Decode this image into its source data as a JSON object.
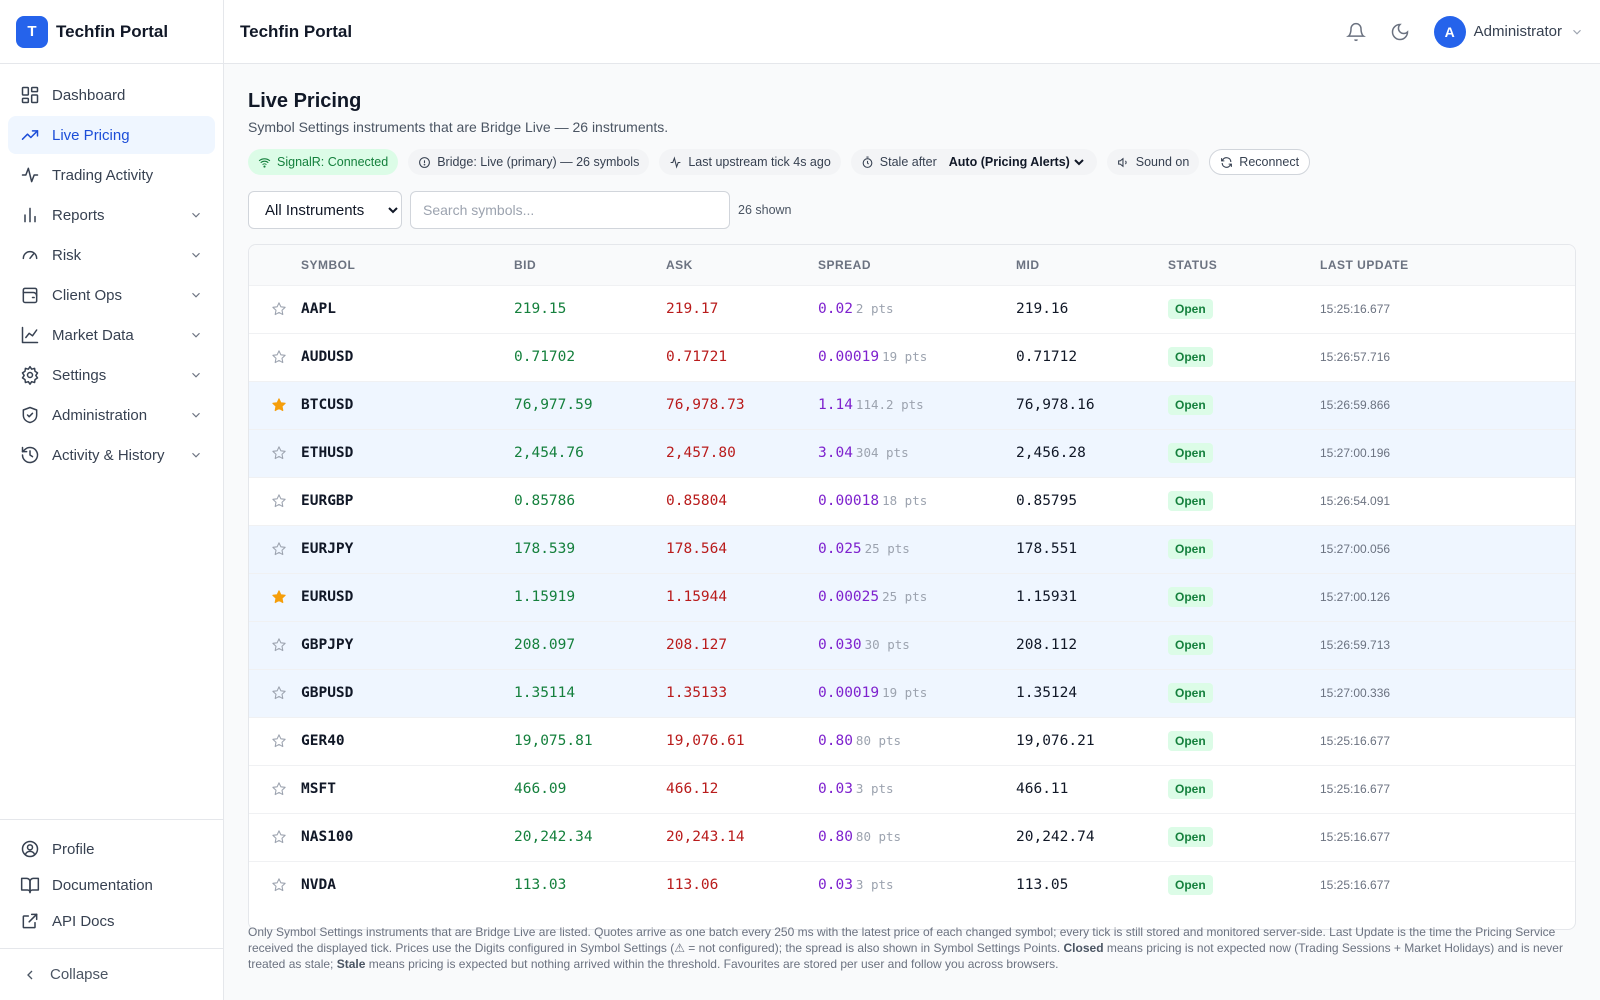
{
  "brand": {
    "logo_letter": "T",
    "name": "Techfin Portal"
  },
  "header": {
    "title": "Techfin Portal",
    "user_initial": "A",
    "user_name": "Administrator"
  },
  "sidebar": {
    "items": [
      {
        "label": "Dashboard",
        "icon": "dashboard-icon",
        "active": false,
        "expandable": false
      },
      {
        "label": "Live Pricing",
        "icon": "trending-up-icon",
        "active": true,
        "expandable": false
      },
      {
        "label": "Trading Activity",
        "icon": "activity-icon",
        "active": false,
        "expandable": false
      },
      {
        "label": "Reports",
        "icon": "bar-chart-icon",
        "active": false,
        "expandable": true
      },
      {
        "label": "Risk",
        "icon": "gauge-icon",
        "active": false,
        "expandable": true
      },
      {
        "label": "Client Ops",
        "icon": "wallet-icon",
        "active": false,
        "expandable": true
      },
      {
        "label": "Market Data",
        "icon": "line-chart-icon",
        "active": false,
        "expandable": true
      },
      {
        "label": "Settings",
        "icon": "gear-icon",
        "active": false,
        "expandable": true
      },
      {
        "label": "Administration",
        "icon": "shield-icon",
        "active": false,
        "expandable": true
      },
      {
        "label": "Activity & History",
        "icon": "history-icon",
        "active": false,
        "expandable": true
      }
    ],
    "bottom_items": [
      {
        "label": "Profile",
        "icon": "user-circle-icon"
      },
      {
        "label": "Documentation",
        "icon": "book-icon"
      },
      {
        "label": "API Docs",
        "icon": "external-link-icon"
      }
    ],
    "collapse_label": "Collapse"
  },
  "main": {
    "title": "Live Pricing",
    "subtitle": "Symbol Settings instruments that are Bridge Live — 26 instruments.",
    "chips": {
      "signalr": "SignalR: Connected",
      "bridge": "Bridge: Live (primary) — 26 symbols",
      "last_tick": "Last upstream tick 4s ago",
      "stale_label": "Stale after",
      "stale_value": "Auto (Pricing Alerts)",
      "sound": "Sound on",
      "reconnect": "Reconnect"
    },
    "filter": {
      "instrument_value": "All Instruments",
      "search_placeholder": "Search symbols...",
      "shown": "26 shown"
    },
    "columns": [
      "SYMBOL",
      "BID",
      "ASK",
      "SPREAD",
      "MID",
      "STATUS",
      "LAST UPDATE"
    ],
    "rows": [
      {
        "fav": false,
        "hl": false,
        "symbol": "AAPL",
        "bid": "219.15",
        "ask": "219.17",
        "spread": "0.02",
        "pts": "2 pts",
        "mid": "219.16",
        "status": "Open",
        "updated": "15:25:16.677"
      },
      {
        "fav": false,
        "hl": false,
        "symbol": "AUDUSD",
        "bid": "0.71702",
        "ask": "0.71721",
        "spread": "0.00019",
        "pts": "19 pts",
        "mid": "0.71712",
        "status": "Open",
        "updated": "15:26:57.716"
      },
      {
        "fav": true,
        "hl": true,
        "symbol": "BTCUSD",
        "bid": "76,977.59",
        "ask": "76,978.73",
        "spread": "1.14",
        "pts": "114.2 pts",
        "mid": "76,978.16",
        "status": "Open",
        "updated": "15:26:59.866"
      },
      {
        "fav": false,
        "hl": true,
        "symbol": "ETHUSD",
        "bid": "2,454.76",
        "ask": "2,457.80",
        "spread": "3.04",
        "pts": "304 pts",
        "mid": "2,456.28",
        "status": "Open",
        "updated": "15:27:00.196"
      },
      {
        "fav": false,
        "hl": false,
        "symbol": "EURGBP",
        "bid": "0.85786",
        "ask": "0.85804",
        "spread": "0.00018",
        "pts": "18 pts",
        "mid": "0.85795",
        "status": "Open",
        "updated": "15:26:54.091"
      },
      {
        "fav": false,
        "hl": true,
        "symbol": "EURJPY",
        "bid": "178.539",
        "ask": "178.564",
        "spread": "0.025",
        "pts": "25 pts",
        "mid": "178.551",
        "status": "Open",
        "updated": "15:27:00.056"
      },
      {
        "fav": true,
        "hl": true,
        "symbol": "EURUSD",
        "bid": "1.15919",
        "ask": "1.15944",
        "spread": "0.00025",
        "pts": "25 pts",
        "mid": "1.15931",
        "status": "Open",
        "updated": "15:27:00.126"
      },
      {
        "fav": false,
        "hl": true,
        "symbol": "GBPJPY",
        "bid": "208.097",
        "ask": "208.127",
        "spread": "0.030",
        "pts": "30 pts",
        "mid": "208.112",
        "status": "Open",
        "updated": "15:26:59.713"
      },
      {
        "fav": false,
        "hl": true,
        "symbol": "GBPUSD",
        "bid": "1.35114",
        "ask": "1.35133",
        "spread": "0.00019",
        "pts": "19 pts",
        "mid": "1.35124",
        "status": "Open",
        "updated": "15:27:00.336"
      },
      {
        "fav": false,
        "hl": false,
        "symbol": "GER40",
        "bid": "19,075.81",
        "ask": "19,076.61",
        "spread": "0.80",
        "pts": "80 pts",
        "mid": "19,076.21",
        "status": "Open",
        "updated": "15:25:16.677"
      },
      {
        "fav": false,
        "hl": false,
        "symbol": "MSFT",
        "bid": "466.09",
        "ask": "466.12",
        "spread": "0.03",
        "pts": "3 pts",
        "mid": "466.11",
        "status": "Open",
        "updated": "15:25:16.677"
      },
      {
        "fav": false,
        "hl": false,
        "symbol": "NAS100",
        "bid": "20,242.34",
        "ask": "20,243.14",
        "spread": "0.80",
        "pts": "80 pts",
        "mid": "20,242.74",
        "status": "Open",
        "updated": "15:25:16.677"
      },
      {
        "fav": false,
        "hl": false,
        "symbol": "NVDA",
        "bid": "113.03",
        "ask": "113.06",
        "spread": "0.03",
        "pts": "3 pts",
        "mid": "113.05",
        "status": "Open",
        "updated": "15:25:16.677"
      }
    ],
    "footnote": {
      "part1": "Only Symbol Settings instruments that are Bridge Live are listed. Quotes arrive as one batch every 250 ms with the latest price of each changed symbol; every tick is still stored and monitored server-side. Last Update is the time the Pricing Service received the displayed tick. Prices use the Digits configured in Symbol Settings (⚠ = not configured); the spread is also shown in Symbol Settings Points. ",
      "closed": "Closed",
      "part2": " means pricing is not expected now (Trading Sessions + Market Holidays) and is never treated as stale; ",
      "stale": "Stale",
      "part3": " means pricing is expected but nothing arrived within the threshold. Favourites are stored per user and follow you across browsers."
    }
  },
  "colors": {
    "accent": "#2563eb",
    "bid": "#15803d",
    "ask": "#b91c1c",
    "spread": "#7e22ce",
    "favourite": "#f59e0b",
    "row_highlight": "#eff6ff"
  }
}
